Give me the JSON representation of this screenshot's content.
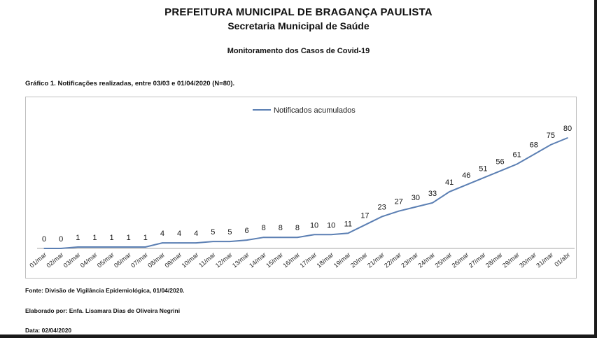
{
  "header": {
    "title": "PREFEITURA MUNICIPAL DE BRAGANÇA PAULISTA",
    "subtitle": "Secretaria Municipal de Saúde",
    "report_title": "Monitoramento dos Casos de Covid-19"
  },
  "chart_caption": "Gráfico 1. Notificações realizadas, entre 03/03 e 01/04/2020 (N=80).",
  "footer": {
    "source": "Fonte: Divisão de Vigilância Epidemiológica, 01/04/2020.",
    "author": "Elaborado por: Enfa. Lisamara Dias de Oliveira Negrini",
    "date": "Data: 02/04/2020"
  },
  "colors": {
    "line": "#5b7fb3",
    "axis": "#a6a6a6",
    "text": "#111111"
  },
  "chart_data": {
    "type": "line",
    "title": "Gráfico 1. Notificações realizadas, entre 03/03 e 01/04/2020 (N=80).",
    "xlabel": "",
    "ylabel": "",
    "ylim": [
      0,
      80
    ],
    "grid": false,
    "legend": "top-center",
    "categories": [
      "01/mar",
      "02/mar",
      "03/mar",
      "04/mar",
      "05/mar",
      "06/mar",
      "07/mar",
      "08/mar",
      "09/mar",
      "10/mar",
      "11/mar",
      "12/mar",
      "13/mar",
      "14/mar",
      "15/mar",
      "16/mar",
      "17/mar",
      "18/mar",
      "19/mar",
      "20/mar",
      "21/mar",
      "22/mar",
      "23/mar",
      "24/mar",
      "25/mar",
      "26/mar",
      "27/mar",
      "28/mar",
      "29/mar",
      "30/mar",
      "31/mar",
      "01/abr"
    ],
    "series": [
      {
        "name": "Notificados acumulados",
        "values": [
          0,
          0,
          1,
          1,
          1,
          1,
          1,
          4,
          4,
          4,
          5,
          5,
          6,
          8,
          8,
          8,
          10,
          10,
          11,
          17,
          23,
          27,
          30,
          33,
          41,
          46,
          51,
          56,
          61,
          68,
          75,
          80
        ]
      }
    ]
  }
}
